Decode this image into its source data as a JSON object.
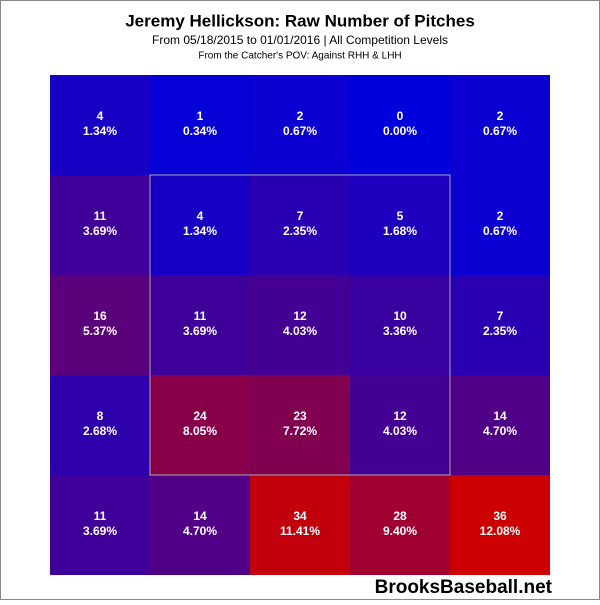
{
  "chart_data": {
    "type": "heatmap",
    "title": "Jeremy Hellickson: Raw Number of Pitches",
    "subtitle": "From 05/18/2015 to 01/01/2016 | All Competition Levels",
    "note": "From the Catcher's POV:  Against RHH & LHH",
    "watermark": "BrooksBaseball.net",
    "values": [
      [
        4,
        1,
        2,
        0,
        2
      ],
      [
        11,
        4,
        7,
        5,
        2
      ],
      [
        16,
        11,
        12,
        10,
        7
      ],
      [
        8,
        24,
        23,
        12,
        14
      ],
      [
        11,
        14,
        34,
        28,
        36
      ]
    ],
    "shares": [
      [
        1.34,
        0.34,
        0.67,
        0.0,
        0.67
      ],
      [
        3.69,
        1.34,
        2.35,
        1.68,
        0.67
      ],
      [
        5.37,
        3.69,
        4.03,
        3.36,
        2.35
      ],
      [
        2.68,
        8.05,
        7.72,
        4.03,
        4.7
      ],
      [
        3.69,
        4.7,
        11.41,
        9.4,
        12.08
      ]
    ],
    "share_labels": [
      [
        "1.34%",
        "0.34%",
        "0.67%",
        "0.00%",
        "0.67%"
      ],
      [
        "3.69%",
        "1.34%",
        "2.35%",
        "1.68%",
        "0.67%"
      ],
      [
        "5.37%",
        "3.69%",
        "4.03%",
        "3.36%",
        "2.35%"
      ],
      [
        "2.68%",
        "8.05%",
        "7.72%",
        "4.03%",
        "4.70%"
      ],
      [
        "3.69%",
        "4.70%",
        "11.41%",
        "9.40%",
        "12.08%"
      ]
    ],
    "colors": [
      "#0000dd",
      "#cc0000"
    ],
    "clim": [
      0,
      36
    ]
  }
}
